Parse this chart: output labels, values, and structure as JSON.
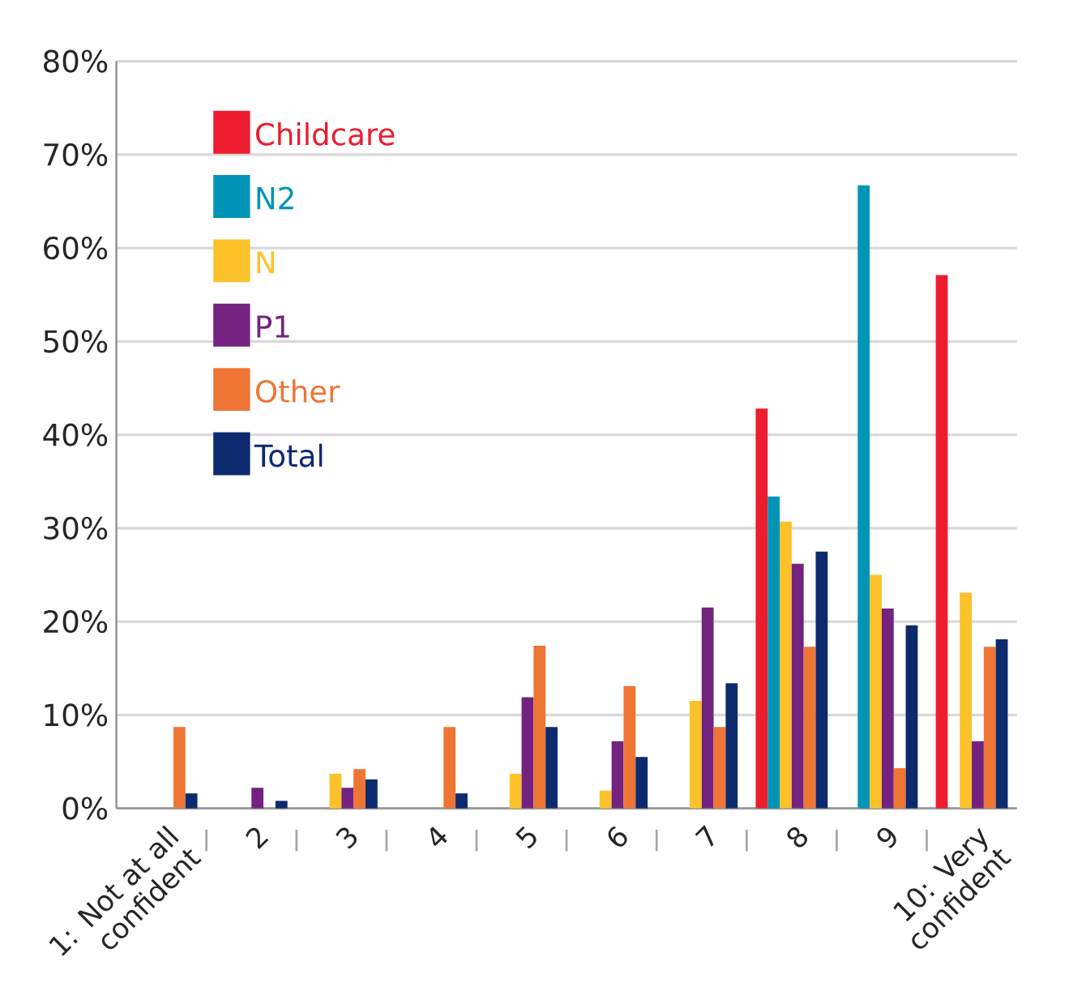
{
  "chart_data": {
    "type": "bar",
    "categories": [
      "1: Not at all confident",
      "2",
      "3",
      "4",
      "5",
      "6",
      "7",
      "8",
      "9",
      "10: Very confident"
    ],
    "series": [
      {
        "name": "Childcare",
        "color": "#ed1c2e",
        "values": [
          null,
          null,
          null,
          null,
          null,
          null,
          null,
          42.8,
          null,
          57.1
        ]
      },
      {
        "name": "N2",
        "color": "#0095b6",
        "values": [
          null,
          null,
          null,
          null,
          null,
          null,
          null,
          33.4,
          66.7,
          null
        ]
      },
      {
        "name": "N",
        "color": "#fdc12a",
        "values": [
          null,
          null,
          3.7,
          null,
          3.7,
          1.9,
          11.5,
          30.7,
          25.0,
          23.1
        ]
      },
      {
        "name": "P1",
        "color": "#73237f",
        "values": [
          null,
          2.2,
          2.2,
          null,
          11.9,
          7.2,
          21.5,
          26.2,
          21.4,
          7.2
        ]
      },
      {
        "name": "Other",
        "color": "#ef7535",
        "values": [
          8.7,
          null,
          4.2,
          8.7,
          17.4,
          13.1,
          8.7,
          17.3,
          4.3,
          17.3
        ]
      },
      {
        "name": "Total",
        "color": "#0d2a6e",
        "values": [
          1.6,
          0.8,
          3.1,
          1.6,
          8.7,
          5.5,
          13.4,
          27.5,
          19.6,
          18.1
        ]
      }
    ],
    "ylim": [
      0,
      80
    ],
    "yticks": [
      {
        "value": 0,
        "label": "0%"
      },
      {
        "value": 10,
        "label": "10%"
      },
      {
        "value": 20,
        "label": "20%"
      },
      {
        "value": 30,
        "label": "30%"
      },
      {
        "value": 40,
        "label": "40%"
      },
      {
        "value": 50,
        "label": "50%"
      },
      {
        "value": 60,
        "label": "60%"
      },
      {
        "value": 70,
        "label": "70%"
      },
      {
        "value": 80,
        "label": "80%"
      }
    ],
    "grid": "y",
    "legend": "top left"
  }
}
